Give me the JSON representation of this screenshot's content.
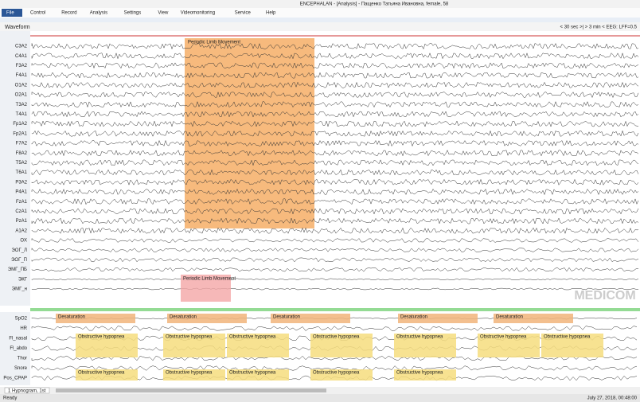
{
  "window": {
    "title": "ENCEPHALAN - [Analysis] - Пащенко Татьяна Ивановна, female, 58"
  },
  "menu": [
    "File",
    "Control",
    "Record",
    "Analysis",
    "Settings",
    "View",
    "Videomonitoring",
    "Service",
    "Help"
  ],
  "toolbar": {
    "title": "Waveform",
    "right": "< 30 sec >|  > 3 min <  EEG: LFF=0.5"
  },
  "eeg_channels": [
    "C3A2",
    "C4A1",
    "F3A2",
    "F4A1",
    "O1A2",
    "O2A1",
    "T3A2",
    "T4A1",
    "Fp1A2",
    "Fp2A1",
    "F7A2",
    "F8A2",
    "T5A2",
    "T6A1",
    "P3A2",
    "P4A1",
    "FzA1",
    "CzA1",
    "PzA1",
    "A1A2",
    "OX",
    "ЭОГ_Л",
    "ЭОГ_П",
    "ЭМГ_ПБ",
    "ЭКГ",
    "ЭМГ_н"
  ],
  "eeg_events": [
    "Periodic Limb Movement",
    "Periodic Limb Movement"
  ],
  "logo": "MEDICOM",
  "poly_channels": [
    "SpO2",
    "HR",
    "Fl_nasal",
    "Fl_abdo",
    "Thor",
    "Snore",
    "Pos_CPAP"
  ],
  "poly_events": [
    "Desaturation",
    "Desaturation",
    "Desaturation",
    "Desaturation",
    "Desaturation",
    "Obstructive hypopnea",
    "Obstructive hypopnea",
    "Obstructive hypopnea",
    "Obstructive hypopnea",
    "Obstructive hypopnea",
    "Obstructive hypopnea",
    "Obstructive hypopnea",
    "Obstructive hypopnea",
    "Obstructive hypopnea",
    "Obstructive hypopnea",
    "Obstructive hypopnea",
    "Obstructive hypopnea"
  ],
  "tab": "1 Hypnogram, 1st",
  "status": {
    "left": "Ready",
    "right": "July 27, 2018, 00:48:00"
  }
}
